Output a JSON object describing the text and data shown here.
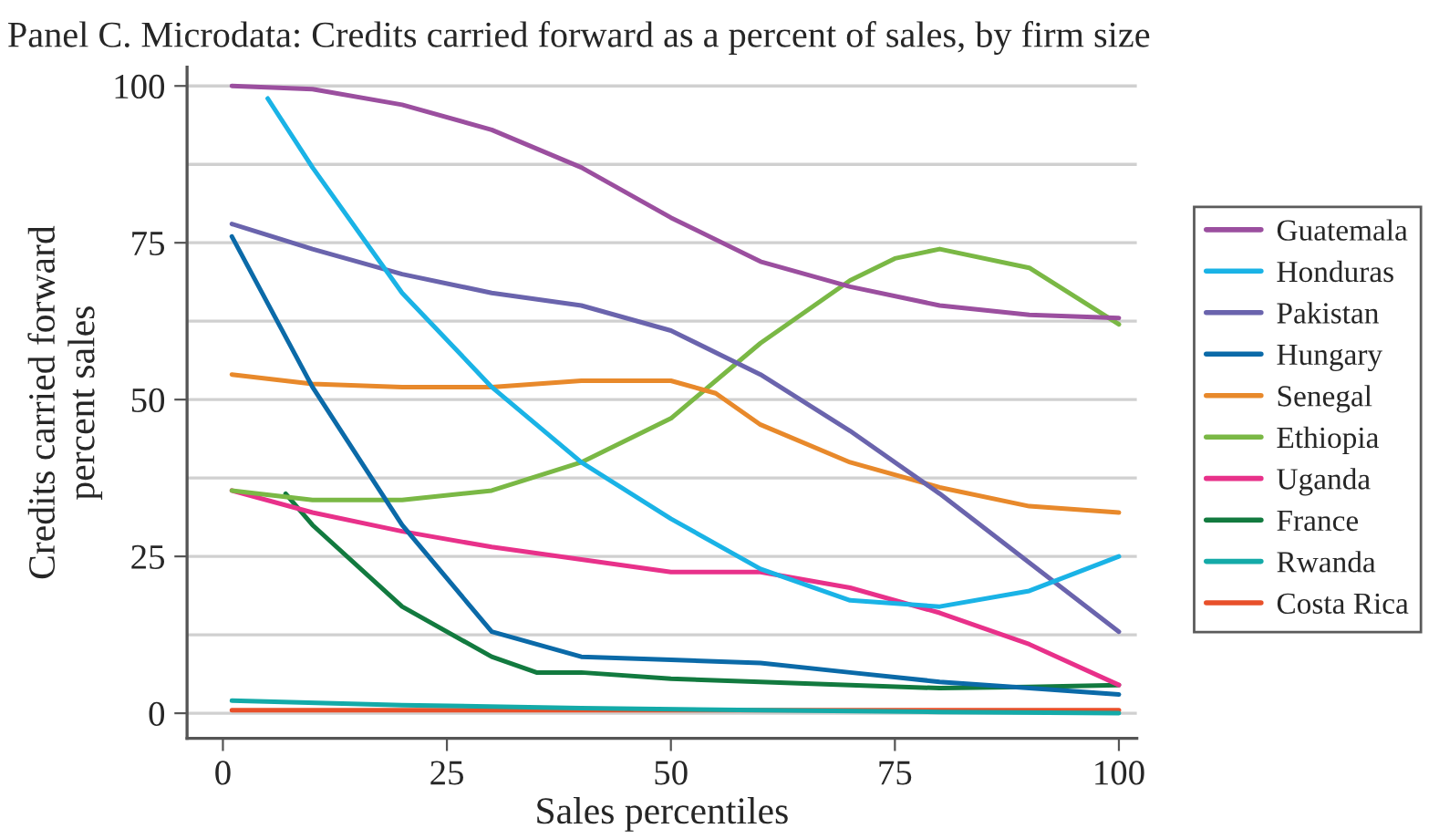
{
  "chart_data": {
    "type": "line",
    "title": "Panel C. Microdata: Credits carried forward as a percent of sales, by firm size",
    "xlabel": "Sales percentiles",
    "ylabel": "Credits carried forward\npercent sales",
    "xlim": [
      -4,
      102
    ],
    "xticks": [
      0,
      25,
      50,
      75,
      100
    ],
    "ylim": [
      -4,
      103
    ],
    "yticks": [
      0,
      {
        "value": 12.5,
        "label": null
      },
      25,
      {
        "value": 37.5,
        "label": null
      },
      50,
      {
        "value": 62.5,
        "label": null
      },
      75,
      {
        "value": 87.5,
        "label": null
      },
      100
    ],
    "grid": "y",
    "legend": "right",
    "marker": "none",
    "line_style": "solid",
    "series": [
      {
        "name": "Guatemala",
        "color": "#9b4f9f",
        "x": [
          1,
          10,
          20,
          30,
          40,
          50,
          60,
          70,
          80,
          90,
          100
        ],
        "values": [
          100,
          99.5,
          97,
          93,
          87,
          79,
          72,
          68,
          65,
          63.5,
          63
        ]
      },
      {
        "name": "Honduras",
        "color": "#1ab3e6",
        "x": [
          5,
          10,
          20,
          30,
          40,
          50,
          60,
          70,
          80,
          90,
          100
        ],
        "values": [
          98,
          87,
          67,
          52,
          40,
          31,
          23,
          18,
          17,
          19.5,
          25
        ]
      },
      {
        "name": "Pakistan",
        "color": "#6a64ad",
        "x": [
          1,
          10,
          20,
          30,
          40,
          50,
          60,
          70,
          80,
          90,
          100
        ],
        "values": [
          78,
          74,
          70,
          67,
          65,
          61,
          54,
          45,
          35,
          24,
          13
        ]
      },
      {
        "name": "Hungary",
        "color": "#0b6aa8",
        "x": [
          1,
          10,
          20,
          30,
          40,
          50,
          60,
          70,
          80,
          90,
          100
        ],
        "values": [
          76,
          52,
          30,
          13,
          9,
          8.5,
          8,
          6.5,
          5,
          4,
          3
        ]
      },
      {
        "name": "Senegal",
        "color": "#e8892b",
        "x": [
          1,
          10,
          20,
          30,
          40,
          50,
          55,
          60,
          70,
          80,
          90,
          100
        ],
        "values": [
          54,
          52.5,
          52,
          52,
          53,
          53,
          51,
          46,
          40,
          36,
          33,
          32
        ]
      },
      {
        "name": "Ethiopia",
        "color": "#7ab845",
        "x": [
          1,
          10,
          20,
          30,
          40,
          50,
          60,
          70,
          75,
          80,
          90,
          100
        ],
        "values": [
          35.5,
          34,
          34,
          35.5,
          40,
          47,
          59,
          69,
          72.5,
          74,
          71,
          62
        ]
      },
      {
        "name": "Uganda",
        "color": "#e8318a",
        "x": [
          1,
          10,
          20,
          30,
          40,
          50,
          60,
          70,
          80,
          90,
          100
        ],
        "values": [
          35.5,
          32,
          29,
          26.5,
          24.5,
          22.5,
          22.5,
          20,
          16,
          11,
          4.5
        ]
      },
      {
        "name": "France",
        "color": "#127a3f",
        "x": [
          7,
          10,
          20,
          30,
          35,
          40,
          50,
          60,
          70,
          80,
          90,
          100
        ],
        "values": [
          35,
          30,
          17,
          9,
          6.5,
          6.5,
          5.5,
          5,
          4.5,
          4,
          4.2,
          4.5
        ]
      },
      {
        "name": "Rwanda",
        "color": "#14aaa8",
        "x": [
          1,
          20,
          40,
          60,
          80,
          100
        ],
        "values": [
          2,
          1.3,
          0.8,
          0.5,
          0.2,
          0
        ]
      },
      {
        "name": "Costa Rica",
        "color": "#e8502a",
        "x": [
          1,
          100
        ],
        "values": [
          0.5,
          0.5
        ]
      }
    ]
  }
}
